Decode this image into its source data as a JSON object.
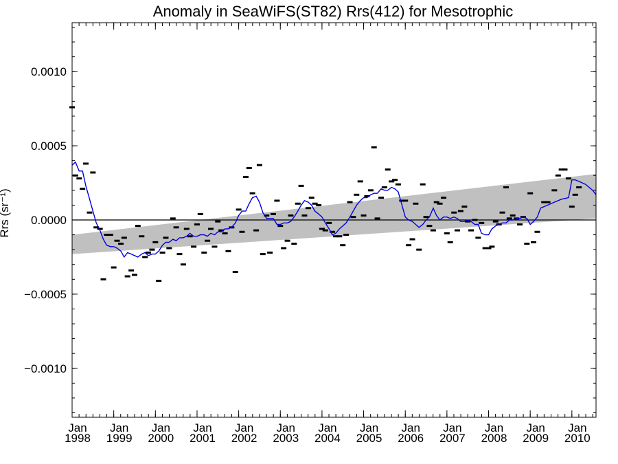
{
  "chart_data": {
    "type": "scatter",
    "title": "Anomaly in SeaWiFS(ST82) Rrs(412) for Mesotrophic",
    "ylabel": "Rrs (sr⁻¹)",
    "ylim": [
      -0.00133,
      0.00133
    ],
    "xlim": [
      1998.0,
      2010.58
    ],
    "yticks": [
      {
        "value": 0.001,
        "label": "0.0010"
      },
      {
        "value": 0.0005,
        "label": "0.0005"
      },
      {
        "value": 0.0,
        "label": "0.0000"
      },
      {
        "value": -0.0005,
        "label": "−0.0005"
      },
      {
        "value": -0.001,
        "label": "−0.0010"
      }
    ],
    "xticks": [
      {
        "value": 1998,
        "month": "Jan",
        "year": "1998"
      },
      {
        "value": 1999,
        "month": "Jan",
        "year": "1999"
      },
      {
        "value": 2000,
        "month": "Jan",
        "year": "2000"
      },
      {
        "value": 2001,
        "month": "Jan",
        "year": "2001"
      },
      {
        "value": 2002,
        "month": "Jan",
        "year": "2002"
      },
      {
        "value": 2003,
        "month": "Jan",
        "year": "2003"
      },
      {
        "value": 2004,
        "month": "Jan",
        "year": "2004"
      },
      {
        "value": 2005,
        "month": "Jan",
        "year": "2005"
      },
      {
        "value": 2006,
        "month": "Jan",
        "year": "2006"
      },
      {
        "value": 2007,
        "month": "Jan",
        "year": "2007"
      },
      {
        "value": 2008,
        "month": "Jan",
        "year": "2008"
      },
      {
        "value": 2009,
        "month": "Jan",
        "year": "2009"
      },
      {
        "value": 2010,
        "month": "Jan",
        "year": "2010"
      }
    ],
    "zero_line": 0.0,
    "trend_band": {
      "x": [
        1998.0,
        2010.58
      ],
      "upper": [
        -0.0001,
        0.00031
      ],
      "lower": [
        -0.00023,
        1e-05
      ]
    },
    "colors": {
      "points": "#000000",
      "running_mean": "#0000dd",
      "band": "#c0c0c0",
      "zero_line": "#000000"
    },
    "monthly_anomalies": [
      [
        1998.0,
        0.00076
      ],
      [
        1998.08,
        0.0003
      ],
      [
        1998.17,
        0.00028
      ],
      [
        1998.25,
        0.00021
      ],
      [
        1998.33,
        0.00038
      ],
      [
        1998.42,
        5e-05
      ],
      [
        1998.5,
        0.00032
      ],
      [
        1998.58,
        -5e-05
      ],
      [
        1998.67,
        -6e-05
      ],
      [
        1998.75,
        -0.0004
      ],
      [
        1998.83,
        -0.0001
      ],
      [
        1998.92,
        -0.0001
      ],
      [
        1999.0,
        -0.00032
      ],
      [
        1999.08,
        -0.00014
      ],
      [
        1999.17,
        -0.00016
      ],
      [
        1999.25,
        -0.00012
      ],
      [
        1999.33,
        -0.00038
      ],
      [
        1999.42,
        -0.00034
      ],
      [
        1999.5,
        -0.00037
      ],
      [
        1999.58,
        -4e-05
      ],
      [
        1999.67,
        -0.00011
      ],
      [
        1999.75,
        -0.00025
      ],
      [
        1999.83,
        -0.00022
      ],
      [
        1999.92,
        -0.0002
      ],
      [
        2000.0,
        -0.00015
      ],
      [
        2000.08,
        -0.00041
      ],
      [
        2000.17,
        -0.00022
      ],
      [
        2000.25,
        -0.00012
      ],
      [
        2000.33,
        -0.00019
      ],
      [
        2000.42,
        1e-05
      ],
      [
        2000.5,
        -5e-05
      ],
      [
        2000.58,
        -0.00023
      ],
      [
        2000.67,
        -0.0003
      ],
      [
        2000.75,
        -6e-05
      ],
      [
        2000.83,
        -0.00011
      ],
      [
        2000.92,
        -0.00018
      ],
      [
        2001.0,
        -3e-05
      ],
      [
        2001.08,
        4e-05
      ],
      [
        2001.17,
        -0.00022
      ],
      [
        2001.25,
        -0.00014
      ],
      [
        2001.33,
        -6e-05
      ],
      [
        2001.42,
        -0.00018
      ],
      [
        2001.5,
        -1e-05
      ],
      [
        2001.58,
        -7e-05
      ],
      [
        2001.67,
        -9e-05
      ],
      [
        2001.75,
        -0.00021
      ],
      [
        2001.83,
        -5e-05
      ],
      [
        2001.92,
        -0.00035
      ],
      [
        2002.0,
        7e-05
      ],
      [
        2002.08,
        -8e-05
      ],
      [
        2002.17,
        0.00029
      ],
      [
        2002.25,
        0.00035
      ],
      [
        2002.33,
        0.00018
      ],
      [
        2002.42,
        -7e-05
      ],
      [
        2002.5,
        0.00037
      ],
      [
        2002.58,
        -0.00023
      ],
      [
        2002.67,
        3e-05
      ],
      [
        2002.75,
        -0.00022
      ],
      [
        2002.83,
        4e-05
      ],
      [
        2002.92,
        0.00013
      ],
      [
        2003.0,
        -4e-05
      ],
      [
        2003.08,
        -0.00019
      ],
      [
        2003.17,
        -0.00014
      ],
      [
        2003.25,
        3e-05
      ],
      [
        2003.33,
        -0.00016
      ],
      [
        2003.42,
        0.00011
      ],
      [
        2003.5,
        0.00023
      ],
      [
        2003.58,
        3e-05
      ],
      [
        2003.67,
        8e-05
      ],
      [
        2003.75,
        0.00015
      ],
      [
        2003.83,
        0.00011
      ],
      [
        2003.92,
        0.0001
      ],
      [
        2004.0,
        -6e-05
      ],
      [
        2004.08,
        -7e-05
      ],
      [
        2004.17,
        -2e-05
      ],
      [
        2004.25,
        -8e-05
      ],
      [
        2004.33,
        -0.00011
      ],
      [
        2004.42,
        -0.00011
      ],
      [
        2004.5,
        -0.00017
      ],
      [
        2004.58,
        -0.0001
      ],
      [
        2004.67,
        0.00012
      ],
      [
        2004.75,
        2e-05
      ],
      [
        2004.83,
        0.00017
      ],
      [
        2004.92,
        0.00026
      ],
      [
        2005.0,
        3e-05
      ],
      [
        2005.08,
        0.00016
      ],
      [
        2005.17,
        0.0002
      ],
      [
        2005.25,
        0.00049
      ],
      [
        2005.33,
        1e-05
      ],
      [
        2005.42,
        0.00015
      ],
      [
        2005.5,
        0.00022
      ],
      [
        2005.58,
        0.00034
      ],
      [
        2005.67,
        0.00026
      ],
      [
        2005.75,
        0.00027
      ],
      [
        2005.83,
        0.00024
      ],
      [
        2005.92,
        0.00013
      ],
      [
        2006.0,
        0.00013
      ],
      [
        2006.08,
        -0.00017
      ],
      [
        2006.17,
        -0.00013
      ],
      [
        2006.25,
        0.00011
      ],
      [
        2006.33,
        -0.0002
      ],
      [
        2006.42,
        0.00024
      ],
      [
        2006.5,
        2e-05
      ],
      [
        2006.58,
        -4e-05
      ],
      [
        2006.67,
        -7e-05
      ],
      [
        2006.75,
        0.00012
      ],
      [
        2006.83,
        0.00011
      ],
      [
        2006.92,
        0.00015
      ],
      [
        2007.0,
        -9e-05
      ],
      [
        2007.08,
        -0.00015
      ],
      [
        2007.17,
        5e-05
      ],
      [
        2007.25,
        -7e-05
      ],
      [
        2007.33,
        6e-05
      ],
      [
        2007.42,
        9e-05
      ],
      [
        2007.5,
        -1e-05
      ],
      [
        2007.58,
        -7e-05
      ],
      [
        2007.67,
        0.0
      ],
      [
        2007.75,
        -0.00012
      ],
      [
        2007.83,
        -2e-05
      ],
      [
        2007.92,
        -0.00019
      ],
      [
        2008.0,
        -0.00019
      ],
      [
        2008.08,
        -0.00018
      ],
      [
        2008.17,
        -1e-05
      ],
      [
        2008.25,
        -3e-05
      ],
      [
        2008.33,
        5e-05
      ],
      [
        2008.42,
        0.00022
      ],
      [
        2008.5,
        1e-05
      ],
      [
        2008.58,
        3e-05
      ],
      [
        2008.67,
        1e-05
      ],
      [
        2008.75,
        -3e-05
      ],
      [
        2008.83,
        2e-05
      ],
      [
        2008.92,
        -0.00016
      ],
      [
        2009.0,
        0.00018
      ],
      [
        2009.08,
        -0.00015
      ],
      [
        2009.17,
        -8e-05
      ],
      [
        2009.33,
        0.00012
      ],
      [
        2009.42,
        0.00012
      ],
      [
        2009.58,
        0.0002
      ],
      [
        2009.67,
        0.0003
      ],
      [
        2009.75,
        0.00034
      ],
      [
        2009.83,
        0.00034
      ],
      [
        2009.92,
        0.00028
      ],
      [
        2010.0,
        9e-05
      ],
      [
        2010.08,
        0.00017
      ],
      [
        2010.17,
        0.00022
      ]
    ],
    "running_mean": [
      [
        1998.0,
        0.00037
      ],
      [
        1998.08,
        0.00039
      ],
      [
        1998.17,
        0.00033
      ],
      [
        1998.25,
        0.00033
      ],
      [
        1998.33,
        0.00023
      ],
      [
        1998.42,
        0.00014
      ],
      [
        1998.5,
        6e-05
      ],
      [
        1998.58,
        -2e-05
      ],
      [
        1998.67,
        -7e-05
      ],
      [
        1998.75,
        -0.00013
      ],
      [
        1998.83,
        -0.00017
      ],
      [
        1998.92,
        -0.00018
      ],
      [
        1999.0,
        -0.00018
      ],
      [
        1999.08,
        -0.00019
      ],
      [
        1999.17,
        -0.00021
      ],
      [
        1999.25,
        -0.00025
      ],
      [
        1999.33,
        -0.00022
      ],
      [
        1999.42,
        -0.00023
      ],
      [
        1999.5,
        -0.00024
      ],
      [
        1999.58,
        -0.00025
      ],
      [
        1999.67,
        -0.00023
      ],
      [
        1999.75,
        -0.00022
      ],
      [
        1999.83,
        -0.00024
      ],
      [
        1999.92,
        -0.00023
      ],
      [
        2000.0,
        -0.00023
      ],
      [
        2000.08,
        -0.00021
      ],
      [
        2000.17,
        -0.00017
      ],
      [
        2000.25,
        -0.00015
      ],
      [
        2000.33,
        -0.00015
      ],
      [
        2000.42,
        -0.00013
      ],
      [
        2000.5,
        -0.00014
      ],
      [
        2000.58,
        -0.00012
      ],
      [
        2000.67,
        -0.00012
      ],
      [
        2000.75,
        -0.00011
      ],
      [
        2000.83,
        -9e-05
      ],
      [
        2000.92,
        -0.00011
      ],
      [
        2001.0,
        -0.00011
      ],
      [
        2001.08,
        -0.0001
      ],
      [
        2001.17,
        -0.0001
      ],
      [
        2001.25,
        -0.00011
      ],
      [
        2001.33,
        -9e-05
      ],
      [
        2001.42,
        -0.0001
      ],
      [
        2001.5,
        -8e-05
      ],
      [
        2001.58,
        -8e-05
      ],
      [
        2001.67,
        -6e-05
      ],
      [
        2001.75,
        -6e-05
      ],
      [
        2001.83,
        -5e-05
      ],
      [
        2001.92,
        -2e-05
      ],
      [
        2002.0,
        3e-05
      ],
      [
        2002.08,
        6e-05
      ],
      [
        2002.17,
        6e-05
      ],
      [
        2002.25,
        0.00011
      ],
      [
        2002.33,
        0.00015
      ],
      [
        2002.42,
        0.00016
      ],
      [
        2002.5,
        0.00012
      ],
      [
        2002.58,
        5e-05
      ],
      [
        2002.67,
        1e-05
      ],
      [
        2002.75,
        1e-05
      ],
      [
        2002.83,
        1e-05
      ],
      [
        2002.92,
        -3e-05
      ],
      [
        2003.0,
        -3e-05
      ],
      [
        2003.08,
        -2e-05
      ],
      [
        2003.17,
        -2e-05
      ],
      [
        2003.25,
        -1e-05
      ],
      [
        2003.33,
        2e-05
      ],
      [
        2003.42,
        6e-05
      ],
      [
        2003.5,
        0.0001
      ],
      [
        2003.58,
        0.00013
      ],
      [
        2003.67,
        0.00012
      ],
      [
        2003.75,
        0.0001
      ],
      [
        2003.83,
        6e-05
      ],
      [
        2003.92,
        4e-05
      ],
      [
        2004.0,
        2e-05
      ],
      [
        2004.08,
        -2e-05
      ],
      [
        2004.17,
        -6e-05
      ],
      [
        2004.25,
        -0.0001
      ],
      [
        2004.33,
        -9e-05
      ],
      [
        2004.42,
        -6e-05
      ],
      [
        2004.5,
        -4e-05
      ],
      [
        2004.58,
        -2e-05
      ],
      [
        2004.67,
        2e-05
      ],
      [
        2004.75,
        6e-05
      ],
      [
        2004.83,
        0.0001
      ],
      [
        2004.92,
        0.00013
      ],
      [
        2005.0,
        0.00015
      ],
      [
        2005.08,
        0.00015
      ],
      [
        2005.17,
        0.00017
      ],
      [
        2005.25,
        0.00018
      ],
      [
        2005.33,
        0.00018
      ],
      [
        2005.42,
        0.00021
      ],
      [
        2005.5,
        0.0002
      ],
      [
        2005.58,
        0.0002
      ],
      [
        2005.67,
        0.00022
      ],
      [
        2005.75,
        0.00021
      ],
      [
        2005.83,
        0.00019
      ],
      [
        2005.92,
        0.0001
      ],
      [
        2006.0,
        2e-05
      ],
      [
        2006.08,
        0.0
      ],
      [
        2006.17,
        -1e-05
      ],
      [
        2006.25,
        -3e-05
      ],
      [
        2006.33,
        -5e-05
      ],
      [
        2006.42,
        -3e-05
      ],
      [
        2006.5,
        0.0
      ],
      [
        2006.58,
        2e-05
      ],
      [
        2006.67,
        8e-05
      ],
      [
        2006.75,
        3e-05
      ],
      [
        2006.83,
        0.0
      ],
      [
        2006.92,
        2e-05
      ],
      [
        2007.0,
        2e-05
      ],
      [
        2007.08,
        1e-05
      ],
      [
        2007.17,
        2e-05
      ],
      [
        2007.25,
        1e-05
      ],
      [
        2007.33,
        -1e-05
      ],
      [
        2007.42,
        -1e-05
      ],
      [
        2007.5,
        0.0
      ],
      [
        2007.58,
        -1e-05
      ],
      [
        2007.67,
        -3e-05
      ],
      [
        2007.75,
        -3e-05
      ],
      [
        2007.83,
        -9e-05
      ],
      [
        2007.92,
        -0.0001
      ],
      [
        2008.0,
        -0.0001
      ],
      [
        2008.08,
        -6e-05
      ],
      [
        2008.17,
        -4e-05
      ],
      [
        2008.25,
        -3e-05
      ],
      [
        2008.33,
        -2e-05
      ],
      [
        2008.42,
        -2e-05
      ],
      [
        2008.5,
        0.0
      ],
      [
        2008.58,
        0.0
      ],
      [
        2008.67,
        1e-05
      ],
      [
        2008.75,
        1e-05
      ],
      [
        2008.83,
        2e-05
      ],
      [
        2008.92,
        1e-05
      ],
      [
        2009.0,
        -3e-05
      ],
      [
        2009.08,
        -1e-05
      ],
      [
        2009.17,
        2e-05
      ],
      [
        2009.25,
        8e-05
      ],
      [
        2009.42,
        0.0001
      ],
      [
        2009.58,
        0.00012
      ],
      [
        2009.75,
        0.00014
      ],
      [
        2009.92,
        0.00015
      ],
      [
        2010.0,
        0.00027
      ],
      [
        2010.08,
        0.00027
      ],
      [
        2010.17,
        0.00026
      ],
      [
        2010.33,
        0.00024
      ],
      [
        2010.5,
        0.0002
      ],
      [
        2010.58,
        0.00017
      ]
    ]
  }
}
